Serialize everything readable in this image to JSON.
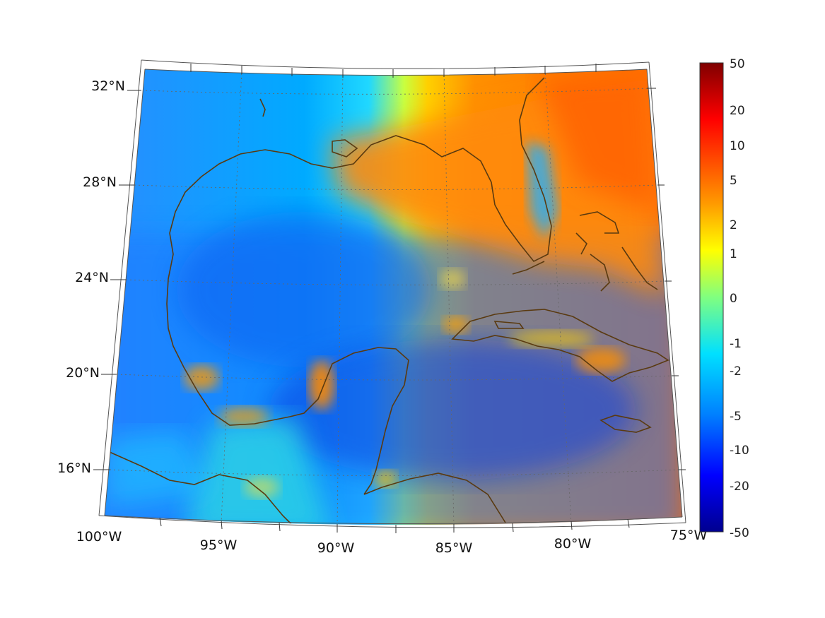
{
  "map": {
    "projection": "conic",
    "colormap": "jet",
    "coastline_color": "#5a3a10",
    "lon_labels": [
      "100°W",
      "95°W",
      "90°W",
      "85°W",
      "80°W",
      "75°W"
    ],
    "lat_labels": [
      "32°N",
      "28°N",
      "24°N",
      "20°N",
      "16°N"
    ]
  },
  "colorbar": {
    "ticks": [
      "50",
      "20",
      "10",
      "5",
      "2",
      "1",
      "0",
      "-1",
      "-2",
      "-5",
      "-10",
      "-20",
      "-50"
    ],
    "min": -50,
    "max": 50
  }
}
